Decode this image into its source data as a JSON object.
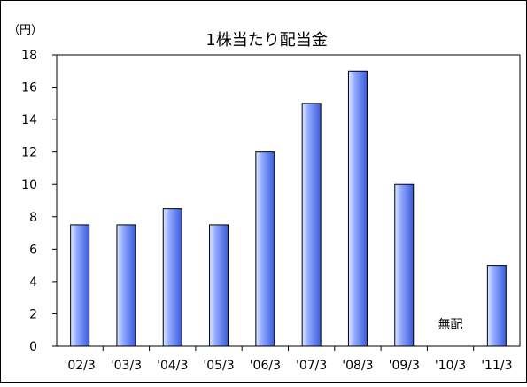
{
  "chart_data": {
    "type": "bar",
    "title": "1株当たり配当金",
    "unit_label": "（円）",
    "categories": [
      "'02/3",
      "'03/3",
      "'04/3",
      "'05/3",
      "'06/3",
      "'07/3",
      "'08/3",
      "'09/3",
      "'10/3",
      "'11/3"
    ],
    "values": [
      7.5,
      7.5,
      8.5,
      7.5,
      12,
      15,
      17,
      10,
      null,
      5
    ],
    "ylim": [
      0,
      18
    ],
    "yticks": [
      0,
      2,
      4,
      6,
      8,
      10,
      12,
      14,
      16,
      18
    ],
    "grid": false,
    "legend": "none",
    "annotations": [
      {
        "category": "'10/3",
        "text": "無配"
      }
    ],
    "colors": {
      "bar_fill_light": "#dde6ff",
      "bar_fill_mid": "#8fa8ff",
      "bar_fill_dark": "#3a5bd9",
      "bar_stroke": "#000000"
    }
  }
}
